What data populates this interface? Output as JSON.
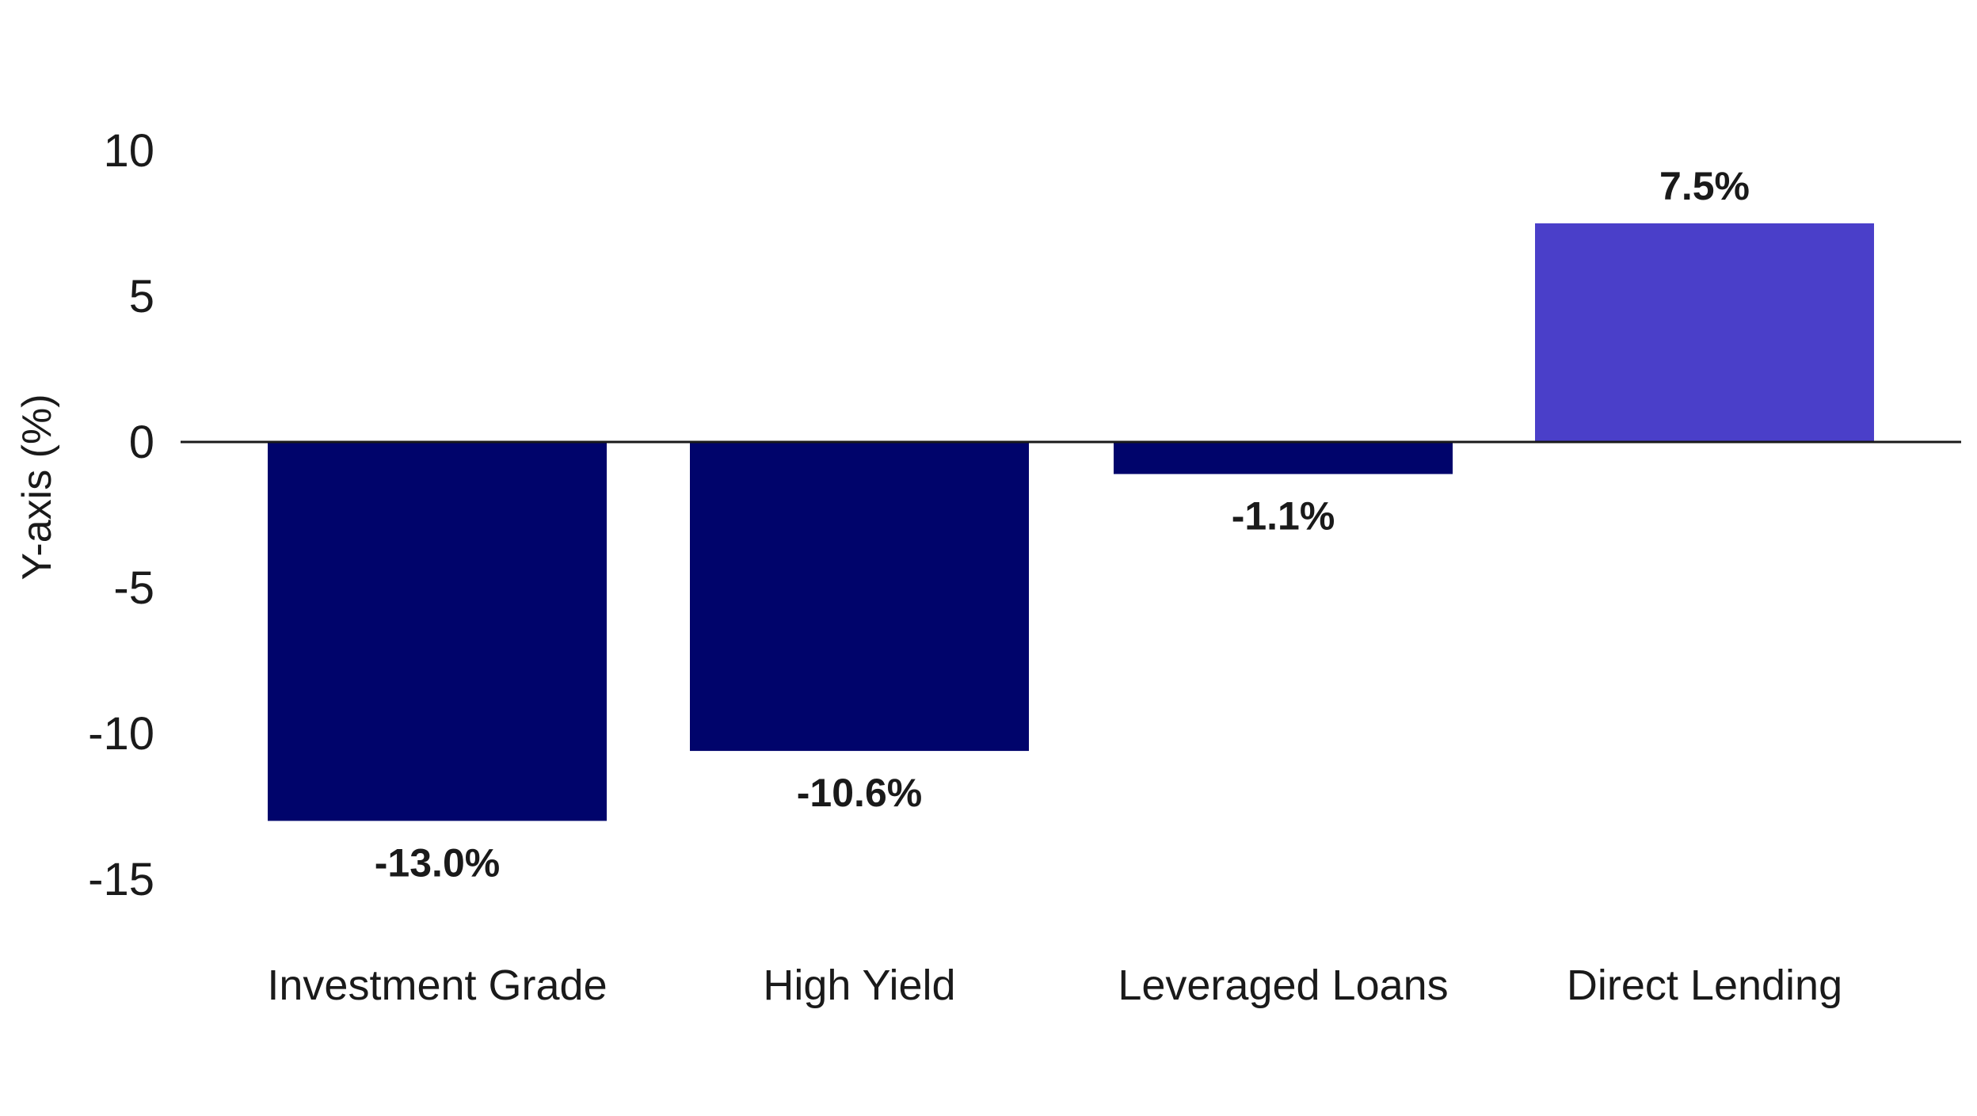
{
  "chart_data": {
    "type": "bar",
    "title": "",
    "xlabel": "",
    "ylabel": "Y-axis (%)",
    "ylim": [
      -15,
      10
    ],
    "yticks": [
      10,
      5,
      0,
      -5,
      -10,
      -15
    ],
    "categories": [
      "Investment Grade",
      "High Yield",
      "Leveraged Loans",
      "Direct Lending"
    ],
    "values": [
      -13.0,
      -10.6,
      -1.1,
      7.5
    ],
    "value_labels": [
      "-13.0%",
      "-10.6%",
      "-1.1%",
      "7.5%"
    ],
    "bar_colors": [
      "#00046b",
      "#00046b",
      "#00046b",
      "#4a3fc9"
    ],
    "grid": false,
    "legend": "none"
  }
}
